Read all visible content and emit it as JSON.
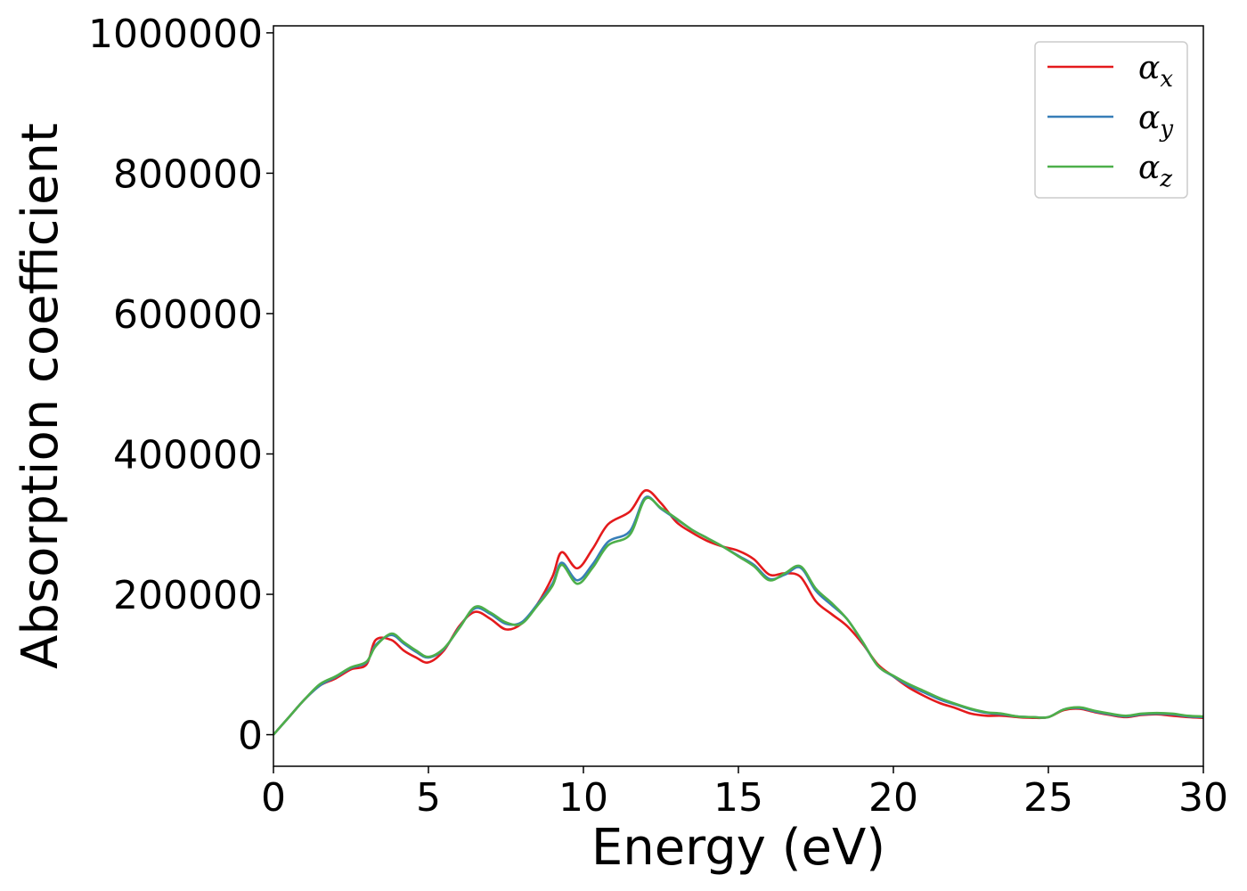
{
  "chart_data": {
    "type": "line",
    "title": "",
    "xlabel": "Energy (eV)",
    "ylabel": "Absorption coefficient",
    "xlim": [
      0,
      30
    ],
    "ylim": [
      -45000,
      1010000
    ],
    "xticks": [
      "0",
      "5",
      "10",
      "15",
      "20",
      "25",
      "30"
    ],
    "yticks": [
      "0",
      "200000",
      "400000",
      "600000",
      "800000",
      "1000000"
    ],
    "grid": false,
    "legend_position": "top-right",
    "series": [
      {
        "name": "αx",
        "name_base": "α",
        "name_sub": "x",
        "color": "#e41a1c",
        "points": [
          [
            0,
            0
          ],
          [
            0.5,
            25000
          ],
          [
            1,
            50000
          ],
          [
            1.5,
            70000
          ],
          [
            2,
            80000
          ],
          [
            2.5,
            93000
          ],
          [
            3,
            100000
          ],
          [
            3.3,
            135000
          ],
          [
            3.8,
            135000
          ],
          [
            4.2,
            120000
          ],
          [
            4.6,
            110000
          ],
          [
            5,
            103000
          ],
          [
            5.5,
            120000
          ],
          [
            6,
            155000
          ],
          [
            6.5,
            175000
          ],
          [
            7,
            165000
          ],
          [
            7.5,
            150000
          ],
          [
            8,
            158000
          ],
          [
            8.5,
            185000
          ],
          [
            9,
            225000
          ],
          [
            9.3,
            260000
          ],
          [
            9.8,
            237000
          ],
          [
            10.3,
            265000
          ],
          [
            10.8,
            300000
          ],
          [
            11.5,
            318000
          ],
          [
            12,
            348000
          ],
          [
            12.5,
            330000
          ],
          [
            13,
            303000
          ],
          [
            13.5,
            288000
          ],
          [
            14,
            276000
          ],
          [
            14.5,
            268000
          ],
          [
            15,
            262000
          ],
          [
            15.5,
            250000
          ],
          [
            16,
            228000
          ],
          [
            16.5,
            230000
          ],
          [
            17,
            225000
          ],
          [
            17.5,
            190000
          ],
          [
            18,
            172000
          ],
          [
            18.5,
            155000
          ],
          [
            19,
            130000
          ],
          [
            19.5,
            100000
          ],
          [
            20,
            83000
          ],
          [
            20.5,
            67000
          ],
          [
            21,
            55000
          ],
          [
            21.5,
            45000
          ],
          [
            22,
            38000
          ],
          [
            22.5,
            30000
          ],
          [
            23,
            27000
          ],
          [
            23.5,
            27000
          ],
          [
            24,
            25000
          ],
          [
            24.5,
            24000
          ],
          [
            25,
            25000
          ],
          [
            25.5,
            35000
          ],
          [
            26,
            37000
          ],
          [
            26.5,
            32000
          ],
          [
            27,
            28000
          ],
          [
            27.5,
            25000
          ],
          [
            28,
            28000
          ],
          [
            28.5,
            29000
          ],
          [
            29,
            27000
          ],
          [
            29.5,
            25000
          ],
          [
            30,
            24000
          ]
        ]
      },
      {
        "name": "αy",
        "name_base": "α",
        "name_sub": "y",
        "color": "#377eb8",
        "points": [
          [
            0,
            0
          ],
          [
            0.5,
            25000
          ],
          [
            1,
            50000
          ],
          [
            1.5,
            70000
          ],
          [
            2,
            82000
          ],
          [
            2.5,
            95000
          ],
          [
            3,
            103000
          ],
          [
            3.3,
            128000
          ],
          [
            3.8,
            142000
          ],
          [
            4.2,
            130000
          ],
          [
            4.6,
            118000
          ],
          [
            5,
            110000
          ],
          [
            5.5,
            122000
          ],
          [
            6,
            153000
          ],
          [
            6.5,
            180000
          ],
          [
            7,
            172000
          ],
          [
            7.5,
            158000
          ],
          [
            8,
            160000
          ],
          [
            8.5,
            185000
          ],
          [
            9,
            215000
          ],
          [
            9.3,
            245000
          ],
          [
            9.8,
            220000
          ],
          [
            10.3,
            243000
          ],
          [
            10.8,
            275000
          ],
          [
            11.5,
            290000
          ],
          [
            12,
            338000
          ],
          [
            12.5,
            322000
          ],
          [
            13,
            307000
          ],
          [
            13.5,
            292000
          ],
          [
            14,
            280000
          ],
          [
            14.5,
            268000
          ],
          [
            15,
            255000
          ],
          [
            15.5,
            242000
          ],
          [
            16,
            222000
          ],
          [
            16.5,
            228000
          ],
          [
            17,
            238000
          ],
          [
            17.5,
            205000
          ],
          [
            18,
            185000
          ],
          [
            18.5,
            165000
          ],
          [
            19,
            132000
          ],
          [
            19.5,
            98000
          ],
          [
            20,
            83000
          ],
          [
            20.5,
            70000
          ],
          [
            21,
            60000
          ],
          [
            21.5,
            50000
          ],
          [
            22,
            43000
          ],
          [
            22.5,
            36000
          ],
          [
            23,
            31000
          ],
          [
            23.5,
            29000
          ],
          [
            24,
            26000
          ],
          [
            24.5,
            25000
          ],
          [
            25,
            25000
          ],
          [
            25.5,
            36000
          ],
          [
            26,
            38000
          ],
          [
            26.5,
            33000
          ],
          [
            27,
            29000
          ],
          [
            27.5,
            26000
          ],
          [
            28,
            29000
          ],
          [
            28.5,
            30000
          ],
          [
            29,
            29000
          ],
          [
            29.5,
            26000
          ],
          [
            30,
            25000
          ]
        ]
      },
      {
        "name": "αz",
        "name_base": "α",
        "name_sub": "z",
        "color": "#4daf4a",
        "points": [
          [
            0,
            0
          ],
          [
            0.5,
            25000
          ],
          [
            1,
            50000
          ],
          [
            1.5,
            72000
          ],
          [
            2,
            83000
          ],
          [
            2.5,
            96000
          ],
          [
            3,
            104000
          ],
          [
            3.3,
            126000
          ],
          [
            3.8,
            144000
          ],
          [
            4.2,
            132000
          ],
          [
            4.6,
            120000
          ],
          [
            5,
            111000
          ],
          [
            5.5,
            123000
          ],
          [
            6,
            152000
          ],
          [
            6.5,
            182000
          ],
          [
            7,
            174000
          ],
          [
            7.5,
            160000
          ],
          [
            8,
            158000
          ],
          [
            8.5,
            183000
          ],
          [
            9,
            212000
          ],
          [
            9.3,
            242000
          ],
          [
            9.8,
            215000
          ],
          [
            10.3,
            238000
          ],
          [
            10.8,
            270000
          ],
          [
            11.5,
            285000
          ],
          [
            12,
            336000
          ],
          [
            12.5,
            323000
          ],
          [
            13,
            308000
          ],
          [
            13.5,
            292000
          ],
          [
            14,
            280000
          ],
          [
            14.5,
            268000
          ],
          [
            15,
            254000
          ],
          [
            15.5,
            240000
          ],
          [
            16,
            220000
          ],
          [
            16.5,
            230000
          ],
          [
            17,
            240000
          ],
          [
            17.5,
            208000
          ],
          [
            18,
            188000
          ],
          [
            18.5,
            165000
          ],
          [
            19,
            133000
          ],
          [
            19.5,
            98000
          ],
          [
            20,
            84000
          ],
          [
            20.5,
            72000
          ],
          [
            21,
            62000
          ],
          [
            21.5,
            52000
          ],
          [
            22,
            44000
          ],
          [
            22.5,
            37000
          ],
          [
            23,
            32000
          ],
          [
            23.5,
            30000
          ],
          [
            24,
            26000
          ],
          [
            24.5,
            25000
          ],
          [
            25,
            25000
          ],
          [
            25.5,
            36000
          ],
          [
            26,
            39000
          ],
          [
            26.5,
            34000
          ],
          [
            27,
            30000
          ],
          [
            27.5,
            27000
          ],
          [
            28,
            30000
          ],
          [
            28.5,
            31000
          ],
          [
            29,
            30000
          ],
          [
            29.5,
            27000
          ],
          [
            30,
            26000
          ]
        ]
      }
    ]
  }
}
